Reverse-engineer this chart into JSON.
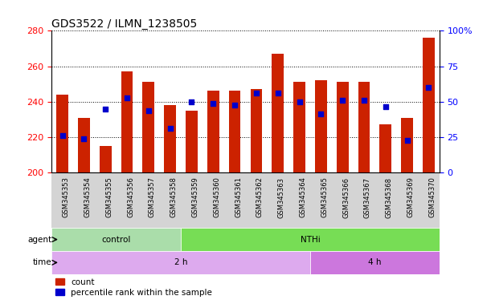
{
  "title": "GDS3522 / ILMN_1238505",
  "samples": [
    "GSM345353",
    "GSM345354",
    "GSM345355",
    "GSM345356",
    "GSM345357",
    "GSM345358",
    "GSM345359",
    "GSM345360",
    "GSM345361",
    "GSM345362",
    "GSM345363",
    "GSM345364",
    "GSM345365",
    "GSM345366",
    "GSM345367",
    "GSM345368",
    "GSM345369",
    "GSM345370"
  ],
  "bar_heights": [
    244,
    231,
    215,
    257,
    251,
    238,
    235,
    246,
    246,
    247,
    267,
    251,
    252,
    251,
    251,
    227,
    231,
    276
  ],
  "blue_dot_y": [
    221,
    219,
    236,
    242,
    235,
    225,
    240,
    239,
    238,
    245,
    245,
    240,
    233,
    241,
    241,
    237,
    218,
    248
  ],
  "ymin": 200,
  "ymax": 280,
  "yticks_left": [
    200,
    220,
    240,
    260,
    280
  ],
  "yticks_right_vals": [
    0,
    25,
    50,
    75,
    100
  ],
  "yticks_right_labels": [
    "0",
    "25",
    "50",
    "75",
    "100%"
  ],
  "bar_color": "#cc2200",
  "dot_color": "#0000cc",
  "bar_width": 0.55,
  "control_color": "#aaddaa",
  "nthi_color": "#77dd55",
  "twoh_color": "#ddaaee",
  "fourh_color": "#cc77dd",
  "xticklabel_bg": "#d4d4d4",
  "agent_row_label": "agent",
  "time_row_label": "time",
  "legend_count_label": "count",
  "legend_pct_label": "percentile rank within the sample",
  "title_fontsize": 10,
  "tick_fontsize": 7
}
